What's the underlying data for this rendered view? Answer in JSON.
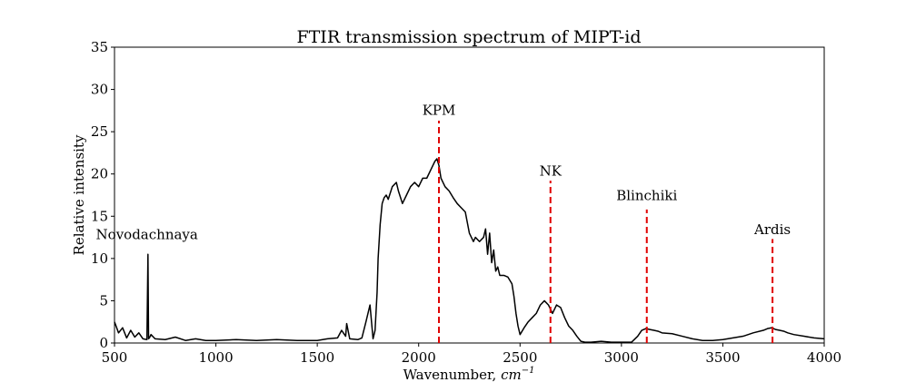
{
  "chart_data": {
    "type": "line",
    "title": "FTIR transmission spectrum of MIPT-id",
    "xlabel": "Wavenumber, ",
    "xlabel_unit_base": "cm",
    "xlabel_unit_exp": "−1",
    "ylabel": "Relative intensity",
    "xlim": [
      500,
      4000
    ],
    "ylim": [
      0,
      35
    ],
    "xticks": [
      500,
      1000,
      1500,
      2000,
      2500,
      3000,
      3500,
      4000
    ],
    "yticks": [
      0,
      5,
      10,
      15,
      20,
      25,
      30,
      35
    ],
    "grid": false,
    "series": [
      {
        "color": "#000000",
        "x": [
          500,
          520,
          540,
          560,
          580,
          600,
          620,
          640,
          660,
          665,
          668,
          672,
          680,
          700,
          750,
          800,
          850,
          900,
          950,
          1000,
          1100,
          1200,
          1300,
          1400,
          1500,
          1550,
          1600,
          1620,
          1640,
          1645,
          1660,
          1700,
          1720,
          1740,
          1760,
          1775,
          1785,
          1795,
          1800,
          1810,
          1820,
          1830,
          1840,
          1850,
          1870,
          1890,
          1900,
          1920,
          1940,
          1960,
          1980,
          2000,
          2020,
          2040,
          2060,
          2080,
          2090,
          2100,
          2110,
          2130,
          2150,
          2170,
          2190,
          2210,
          2230,
          2250,
          2260,
          2270,
          2280,
          2300,
          2320,
          2330,
          2340,
          2350,
          2360,
          2370,
          2380,
          2390,
          2400,
          2420,
          2440,
          2460,
          2470,
          2480,
          2490,
          2500,
          2520,
          2540,
          2560,
          2580,
          2600,
          2620,
          2640,
          2660,
          2680,
          2700,
          2720,
          2740,
          2760,
          2780,
          2800,
          2820,
          2850,
          2900,
          2950,
          3000,
          3050,
          3080,
          3100,
          3120,
          3140,
          3160,
          3180,
          3200,
          3250,
          3300,
          3350,
          3400,
          3450,
          3500,
          3550,
          3600,
          3650,
          3700,
          3720,
          3740,
          3760,
          3780,
          3800,
          3820,
          3850,
          3900,
          3950,
          4000
        ],
        "y": [
          2.5,
          1.2,
          1.8,
          0.6,
          1.5,
          0.7,
          1.2,
          0.5,
          0.4,
          10.5,
          0.5,
          0.6,
          1.0,
          0.5,
          0.4,
          0.7,
          0.3,
          0.5,
          0.3,
          0.3,
          0.4,
          0.3,
          0.4,
          0.3,
          0.3,
          0.5,
          0.6,
          1.5,
          0.8,
          2.3,
          0.5,
          0.4,
          0.6,
          2.5,
          4.5,
          0.5,
          1.5,
          6.0,
          10.0,
          14.0,
          16.5,
          17.2,
          17.5,
          17.0,
          18.5,
          19.0,
          18.0,
          16.5,
          17.5,
          18.5,
          19.0,
          18.5,
          19.5,
          19.5,
          20.5,
          21.5,
          21.8,
          21.0,
          19.5,
          18.5,
          18.0,
          17.2,
          16.5,
          16.0,
          15.5,
          13.0,
          12.5,
          12.0,
          12.5,
          12.0,
          12.5,
          13.5,
          10.5,
          13.0,
          9.5,
          11.0,
          8.5,
          9.0,
          8.0,
          8.0,
          7.8,
          7.0,
          5.5,
          3.5,
          2.0,
          1.0,
          1.8,
          2.5,
          3.0,
          3.5,
          4.5,
          5.0,
          4.5,
          3.5,
          4.5,
          4.2,
          3.0,
          2.0,
          1.5,
          0.8,
          0.2,
          0.1,
          0.1,
          0.2,
          0.1,
          0.1,
          0.1,
          0.8,
          1.5,
          1.7,
          1.6,
          1.5,
          1.4,
          1.2,
          1.1,
          0.8,
          0.5,
          0.3,
          0.3,
          0.4,
          0.6,
          0.8,
          1.2,
          1.5,
          1.7,
          1.8,
          1.6,
          1.5,
          1.4,
          1.2,
          1.0,
          0.8,
          0.6,
          0.5
        ]
      }
    ],
    "annotations": [
      {
        "label": "Novodachnaya",
        "x": 660,
        "text_y": 12.3,
        "line": false
      },
      {
        "label": "KPM",
        "x": 2100,
        "text_y": 27.0,
        "line_top": 26.3,
        "line": true
      },
      {
        "label": "NK",
        "x": 2650,
        "text_y": 19.8,
        "line_top": 19.2,
        "line": true
      },
      {
        "label": "Blinchiki",
        "x": 3125,
        "text_y": 16.9,
        "line_top": 15.8,
        "line": true
      },
      {
        "label": "Ardis",
        "x": 3745,
        "text_y": 12.9,
        "line_top": 12.3,
        "line": true
      }
    ],
    "annotation_line_color": "#e00000"
  }
}
